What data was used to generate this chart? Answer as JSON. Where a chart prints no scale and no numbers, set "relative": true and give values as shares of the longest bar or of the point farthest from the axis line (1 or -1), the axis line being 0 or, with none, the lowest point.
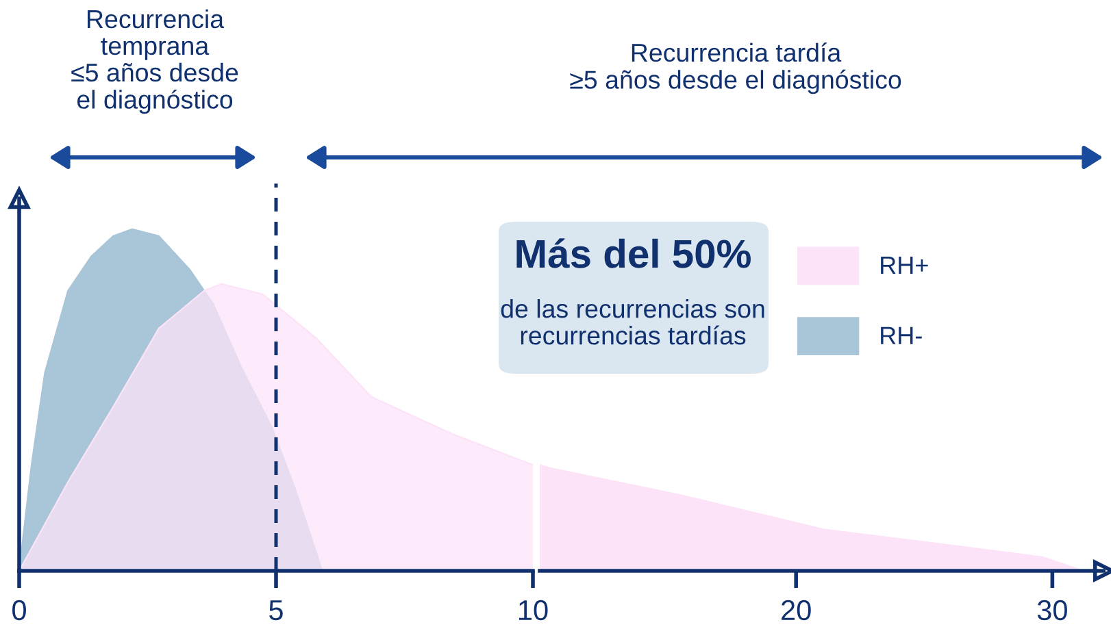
{
  "chart_data": [
    {
      "type": "area",
      "relative": true,
      "xlim": [
        0,
        10
      ],
      "xticks": [
        0,
        5,
        10
      ],
      "tick_labels": "x",
      "grid": false,
      "legend": "top right",
      "series": [
        {
          "name": "RH-",
          "color": "#a9c5d8",
          "x": [
            0,
            0.24,
            0.5,
            0.95,
            1.4,
            1.83,
            2.2,
            2.72,
            3.33,
            3.78,
            4.31,
            4.92,
            5.37,
            5.9
          ],
          "values": [
            0,
            0.31,
            0.58,
            0.82,
            0.92,
            0.98,
            1.0,
            0.98,
            0.88,
            0.78,
            0.6,
            0.42,
            0.24,
            0
          ]
        },
        {
          "name": "RH+",
          "color": "#fce3f8",
          "x": [
            0,
            0.95,
            1.83,
            2.72,
            3.6,
            3.94,
            4.74,
            5.79,
            6.85,
            7.57,
            8.44,
            10
          ],
          "values": [
            0,
            0.26,
            0.48,
            0.71,
            0.82,
            0.84,
            0.81,
            0.68,
            0.51,
            0.46,
            0.4,
            0.31
          ]
        }
      ],
      "ref_lines": [
        {
          "axis": "x",
          "value": 5,
          "line_style": "dashed",
          "color": "#10306e"
        }
      ],
      "annotations": [
        "Recurrencia\ntemprana\n≤5 años desde\nel diagnóstico",
        "Recurrencia tardía\n≥5 años desde el diagnóstico",
        "Más del 50%",
        "de las recurrencias son\nrecurrencias tardías"
      ]
    },
    {
      "type": "area",
      "relative": true,
      "xlim": [
        10,
        32
      ],
      "xticks": [
        20,
        30
      ],
      "tick_labels": "x",
      "grid": false,
      "series": [
        {
          "color": "#fce3f8",
          "x": [
            10,
            10.4,
            15.6,
            21.1,
            26.4,
            29.6,
            31.2
          ],
          "values": [
            1,
            0.97,
            0.71,
            0.39,
            0.23,
            0.13,
            0
          ]
        }
      ]
    }
  ]
}
